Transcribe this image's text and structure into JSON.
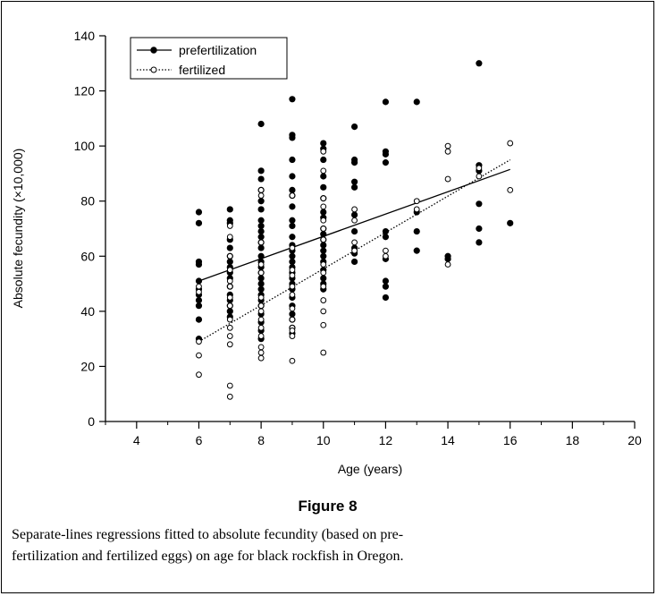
{
  "figure": {
    "title": "Figure 8",
    "caption_line1": "Separate-lines regressions fitted to absolute fecundity (based on pre-",
    "caption_line2": "fertilization and fertilized eggs) on age for black rockfish in Oregon."
  },
  "chart_data": {
    "type": "scatter",
    "title": "",
    "xlabel": "Age (years)",
    "ylabel": "Absolute fecundity (×10,000)",
    "xlim": [
      3,
      20
    ],
    "ylim": [
      0,
      140
    ],
    "xticks": [
      4,
      6,
      8,
      10,
      12,
      14,
      16,
      18,
      20
    ],
    "yticks": [
      0,
      20,
      40,
      60,
      80,
      100,
      120,
      140
    ],
    "grid": false,
    "legend_position": "top-left",
    "series": [
      {
        "name": "prefertilization",
        "marker": "filled-circle",
        "line_style": "solid",
        "color": "#000000",
        "points": [
          [
            6,
            76
          ],
          [
            6,
            72
          ],
          [
            6,
            58
          ],
          [
            6,
            57
          ],
          [
            6,
            51
          ],
          [
            6,
            48
          ],
          [
            6,
            46
          ],
          [
            6,
            44
          ],
          [
            6,
            42
          ],
          [
            6,
            37
          ],
          [
            6,
            30
          ],
          [
            7,
            77
          ],
          [
            7,
            73
          ],
          [
            7,
            72
          ],
          [
            7,
            66
          ],
          [
            7,
            63
          ],
          [
            7,
            60
          ],
          [
            7,
            58
          ],
          [
            7,
            56
          ],
          [
            7,
            54
          ],
          [
            7,
            52
          ],
          [
            7,
            49
          ],
          [
            7,
            46
          ],
          [
            7,
            44
          ],
          [
            7,
            42
          ],
          [
            7,
            40
          ],
          [
            7,
            38
          ],
          [
            8,
            108
          ],
          [
            8,
            91
          ],
          [
            8,
            88
          ],
          [
            8,
            84
          ],
          [
            8,
            80
          ],
          [
            8,
            77
          ],
          [
            8,
            73
          ],
          [
            8,
            71
          ],
          [
            8,
            69
          ],
          [
            8,
            67
          ],
          [
            8,
            65
          ],
          [
            8,
            63
          ],
          [
            8,
            60
          ],
          [
            8,
            58
          ],
          [
            8,
            56
          ],
          [
            8,
            54
          ],
          [
            8,
            52
          ],
          [
            8,
            50
          ],
          [
            8,
            48
          ],
          [
            8,
            46
          ],
          [
            8,
            44
          ],
          [
            8,
            42
          ],
          [
            8,
            39
          ],
          [
            8,
            36
          ],
          [
            8,
            33
          ],
          [
            8,
            30
          ],
          [
            9,
            117
          ],
          [
            9,
            104
          ],
          [
            9,
            103
          ],
          [
            9,
            95
          ],
          [
            9,
            89
          ],
          [
            9,
            84
          ],
          [
            9,
            82
          ],
          [
            9,
            78
          ],
          [
            9,
            73
          ],
          [
            9,
            71
          ],
          [
            9,
            67
          ],
          [
            9,
            64
          ],
          [
            9,
            62
          ],
          [
            9,
            60
          ],
          [
            9,
            58
          ],
          [
            9,
            56
          ],
          [
            9,
            54
          ],
          [
            9,
            52
          ],
          [
            9,
            50
          ],
          [
            9,
            48
          ],
          [
            9,
            45
          ],
          [
            9,
            42
          ],
          [
            9,
            39
          ],
          [
            9,
            37
          ],
          [
            9,
            34
          ],
          [
            9,
            32
          ],
          [
            10,
            101
          ],
          [
            10,
            99
          ],
          [
            10,
            95
          ],
          [
            10,
            89
          ],
          [
            10,
            85
          ],
          [
            10,
            81
          ],
          [
            10,
            76
          ],
          [
            10,
            74
          ],
          [
            10,
            70
          ],
          [
            10,
            68
          ],
          [
            10,
            66
          ],
          [
            10,
            64
          ],
          [
            10,
            62
          ],
          [
            10,
            60
          ],
          [
            10,
            58
          ],
          [
            10,
            55
          ],
          [
            10,
            52
          ],
          [
            10,
            50
          ],
          [
            10,
            48
          ],
          [
            11,
            107
          ],
          [
            11,
            95
          ],
          [
            11,
            94
          ],
          [
            11,
            87
          ],
          [
            11,
            85
          ],
          [
            11,
            75
          ],
          [
            11,
            69
          ],
          [
            11,
            63
          ],
          [
            11,
            61
          ],
          [
            11,
            58
          ],
          [
            12,
            116
          ],
          [
            12,
            98
          ],
          [
            12,
            97
          ],
          [
            12,
            94
          ],
          [
            12,
            69
          ],
          [
            12,
            67
          ],
          [
            12,
            59
          ],
          [
            12,
            51
          ],
          [
            12,
            49
          ],
          [
            12,
            45
          ],
          [
            13,
            116
          ],
          [
            13,
            76
          ],
          [
            13,
            69
          ],
          [
            13,
            62
          ],
          [
            14,
            60
          ],
          [
            14,
            59
          ],
          [
            15,
            130
          ],
          [
            15,
            93
          ],
          [
            15,
            91
          ],
          [
            15,
            79
          ],
          [
            15,
            70
          ],
          [
            15,
            65
          ],
          [
            16,
            72
          ]
        ],
        "regression": {
          "x": [
            6,
            16
          ],
          "y": [
            51,
            91.5
          ]
        }
      },
      {
        "name": "fertilized",
        "marker": "open-circle",
        "line_style": "dotted",
        "color": "#000000",
        "points": [
          [
            6,
            49
          ],
          [
            6,
            47
          ],
          [
            6,
            29
          ],
          [
            6,
            24
          ],
          [
            6,
            17
          ],
          [
            7,
            71
          ],
          [
            7,
            67
          ],
          [
            7,
            60
          ],
          [
            7,
            55
          ],
          [
            7,
            51
          ],
          [
            7,
            49
          ],
          [
            7,
            45
          ],
          [
            7,
            42
          ],
          [
            7,
            37
          ],
          [
            7,
            34
          ],
          [
            7,
            31
          ],
          [
            7,
            28
          ],
          [
            7,
            13
          ],
          [
            7,
            9
          ],
          [
            8,
            84
          ],
          [
            8,
            82
          ],
          [
            8,
            65
          ],
          [
            8,
            57
          ],
          [
            8,
            54
          ],
          [
            8,
            45
          ],
          [
            8,
            42
          ],
          [
            8,
            40
          ],
          [
            8,
            37
          ],
          [
            8,
            34
          ],
          [
            8,
            31
          ],
          [
            8,
            27
          ],
          [
            8,
            25
          ],
          [
            8,
            23
          ],
          [
            9,
            82
          ],
          [
            9,
            63
          ],
          [
            9,
            55
          ],
          [
            9,
            53
          ],
          [
            9,
            49
          ],
          [
            9,
            46
          ],
          [
            9,
            41
          ],
          [
            9,
            37
          ],
          [
            9,
            34
          ],
          [
            9,
            33
          ],
          [
            9,
            31
          ],
          [
            9,
            22
          ],
          [
            10,
            98
          ],
          [
            10,
            91
          ],
          [
            10,
            81
          ],
          [
            10,
            78
          ],
          [
            10,
            73
          ],
          [
            10,
            70
          ],
          [
            10,
            66
          ],
          [
            10,
            57
          ],
          [
            10,
            54
          ],
          [
            10,
            49
          ],
          [
            10,
            44
          ],
          [
            10,
            40
          ],
          [
            10,
            35
          ],
          [
            10,
            25
          ],
          [
            11,
            77
          ],
          [
            11,
            73
          ],
          [
            11,
            65
          ],
          [
            11,
            62
          ],
          [
            12,
            62
          ],
          [
            12,
            60
          ],
          [
            13,
            80
          ],
          [
            13,
            77
          ],
          [
            14,
            100
          ],
          [
            14,
            98
          ],
          [
            14,
            88
          ],
          [
            14,
            57
          ],
          [
            15,
            92
          ],
          [
            15,
            89
          ],
          [
            16,
            101
          ],
          [
            16,
            84
          ]
        ],
        "regression": {
          "x": [
            6,
            16
          ],
          "y": [
            29,
            95
          ]
        }
      }
    ]
  }
}
